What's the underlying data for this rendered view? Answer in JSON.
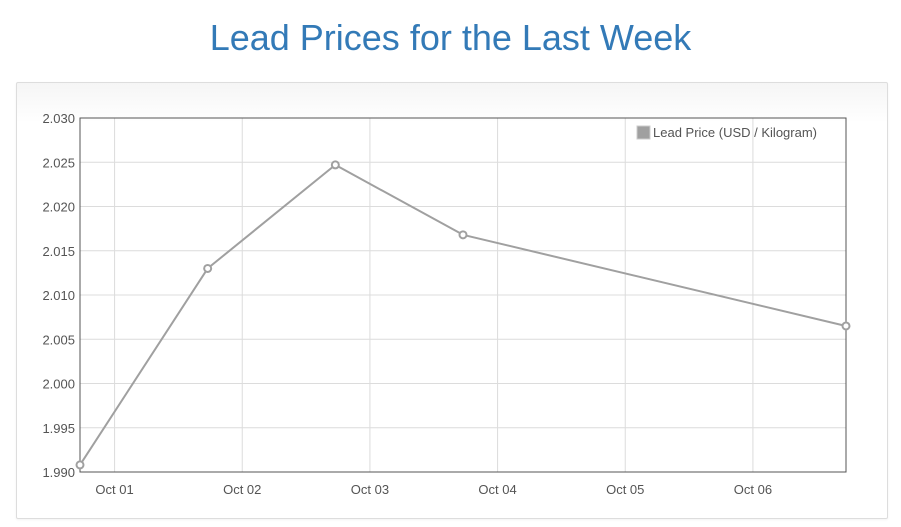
{
  "page": {
    "title": "Lead Prices for the Last Week"
  },
  "colors": {
    "title": "#337ab7",
    "series": "#a0a0a0",
    "grid": "#dcdcdc",
    "axis": "#545454"
  },
  "chart_data": {
    "type": "line",
    "title": "",
    "xlabel": "",
    "ylabel": "",
    "x_ticks": [
      "Oct 01",
      "Oct 02",
      "Oct 03",
      "Oct 04",
      "Oct 05",
      "Oct 06"
    ],
    "xlim": [
      "Sep 30 17:30",
      "Oct 06 17:30"
    ],
    "ylim": [
      1.99,
      2.03
    ],
    "y_ticks": [
      "1.990",
      "1.995",
      "2.000",
      "2.005",
      "2.010",
      "2.015",
      "2.020",
      "2.025",
      "2.030"
    ],
    "grid": true,
    "legend_position": "top-right",
    "series": [
      {
        "name": "Lead Price (USD / Kilogram)",
        "points": [
          {
            "x": "Sep 30 17:30",
            "y": 1.9908
          },
          {
            "x": "Oct 01 17:30",
            "y": 2.013
          },
          {
            "x": "Oct 02 17:30",
            "y": 2.0247
          },
          {
            "x": "Oct 03 17:30",
            "y": 2.0168
          },
          {
            "x": "Oct 06 17:30",
            "y": 2.0065
          }
        ]
      }
    ]
  }
}
